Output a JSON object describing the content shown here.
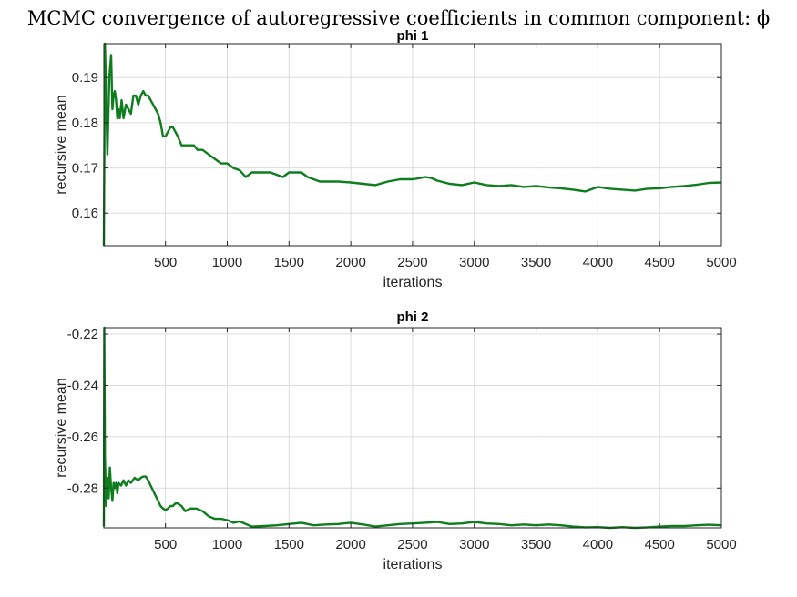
{
  "suptitle": "MCMC convergence of autoregressive coefficients in common component: ϕ",
  "chart_data": [
    {
      "type": "line",
      "title": "phi 1",
      "xlabel": "iterations",
      "ylabel": "recursive mean",
      "xlim": [
        1,
        5000
      ],
      "ylim": [
        0.1528,
        0.1975
      ],
      "xticks": [
        500,
        1000,
        1500,
        2000,
        2500,
        3000,
        3500,
        4000,
        4500,
        5000
      ],
      "yticks": [
        0.16,
        0.17,
        0.18,
        0.19
      ],
      "ytick_labels": [
        "0.16",
        "0.17",
        "0.18",
        "0.19"
      ],
      "grid": true,
      "color": "#0e7d1e",
      "series": [
        {
          "x": [
            1,
            10,
            20,
            30,
            45,
            60,
            70,
            80,
            90,
            100,
            110,
            120,
            130,
            145,
            160,
            180,
            200,
            220,
            240,
            260,
            280,
            300,
            320,
            340,
            360,
            380,
            400,
            420,
            440,
            460,
            480,
            500,
            520,
            540,
            560,
            580,
            600,
            630,
            660,
            700,
            730,
            760,
            800,
            850,
            900,
            950,
            1000,
            1050,
            1100,
            1150,
            1200,
            1250,
            1300,
            1350,
            1400,
            1450,
            1500,
            1550,
            1600,
            1650,
            1700,
            1750,
            1800,
            1900,
            2000,
            2100,
            2200,
            2300,
            2400,
            2500,
            2550,
            2600,
            2650,
            2700,
            2800,
            2900,
            3000,
            3100,
            3200,
            3300,
            3400,
            3500,
            3600,
            3700,
            3800,
            3900,
            4000,
            4100,
            4200,
            4300,
            4400,
            4500,
            4600,
            4700,
            4800,
            4900,
            5000
          ],
          "values": [
            0.1528,
            0.1975,
            0.185,
            0.173,
            0.19,
            0.195,
            0.183,
            0.186,
            0.187,
            0.185,
            0.181,
            0.183,
            0.181,
            0.185,
            0.181,
            0.184,
            0.183,
            0.182,
            0.186,
            0.186,
            0.184,
            0.186,
            0.187,
            0.186,
            0.186,
            0.185,
            0.184,
            0.183,
            0.182,
            0.18,
            0.177,
            0.177,
            0.178,
            0.179,
            0.179,
            0.178,
            0.177,
            0.175,
            0.175,
            0.175,
            0.175,
            0.174,
            0.174,
            0.173,
            0.172,
            0.171,
            0.171,
            0.17,
            0.1695,
            0.168,
            0.169,
            0.169,
            0.169,
            0.169,
            0.1685,
            0.168,
            0.169,
            0.169,
            0.169,
            0.168,
            0.1675,
            0.167,
            0.167,
            0.167,
            0.1668,
            0.1665,
            0.1662,
            0.167,
            0.1675,
            0.1675,
            0.1677,
            0.168,
            0.1678,
            0.1672,
            0.1665,
            0.1662,
            0.1668,
            0.1662,
            0.166,
            0.1662,
            0.1658,
            0.166,
            0.1657,
            0.1655,
            0.1652,
            0.1648,
            0.1658,
            0.1654,
            0.1652,
            0.165,
            0.1654,
            0.1655,
            0.1658,
            0.166,
            0.1663,
            0.1667,
            0.1668
          ]
        }
      ]
    },
    {
      "type": "line",
      "title": "phi 2",
      "xlabel": "iterations",
      "ylabel": "recursive mean",
      "xlim": [
        1,
        5000
      ],
      "ylim": [
        -0.2955,
        -0.2175
      ],
      "xticks": [
        500,
        1000,
        1500,
        2000,
        2500,
        3000,
        3500,
        4000,
        4500,
        5000
      ],
      "yticks": [
        -0.28,
        -0.26,
        -0.24,
        -0.22
      ],
      "ytick_labels": [
        "-0.28",
        "-0.26",
        "-0.24",
        "-0.22"
      ],
      "grid": true,
      "color": "#0e7d1e",
      "series": [
        {
          "x": [
            1,
            5,
            10,
            20,
            30,
            40,
            50,
            60,
            70,
            80,
            90,
            100,
            110,
            120,
            140,
            160,
            180,
            200,
            220,
            250,
            280,
            300,
            320,
            340,
            360,
            380,
            400,
            420,
            440,
            460,
            480,
            500,
            520,
            540,
            560,
            580,
            600,
            630,
            660,
            700,
            750,
            800,
            850,
            900,
            950,
            1000,
            1050,
            1100,
            1150,
            1200,
            1300,
            1400,
            1500,
            1600,
            1700,
            1800,
            1900,
            2000,
            2100,
            2200,
            2300,
            2400,
            2500,
            2600,
            2700,
            2800,
            2900,
            3000,
            3100,
            3200,
            3300,
            3400,
            3500,
            3600,
            3700,
            3800,
            3900,
            4000,
            4100,
            4200,
            4300,
            4400,
            4500,
            4600,
            4700,
            4800,
            4900,
            5000
          ],
          "values": [
            -0.295,
            -0.2175,
            -0.268,
            -0.287,
            -0.276,
            -0.284,
            -0.272,
            -0.28,
            -0.285,
            -0.278,
            -0.28,
            -0.278,
            -0.282,
            -0.278,
            -0.279,
            -0.277,
            -0.279,
            -0.277,
            -0.278,
            -0.276,
            -0.277,
            -0.276,
            -0.2755,
            -0.2755,
            -0.277,
            -0.279,
            -0.281,
            -0.283,
            -0.285,
            -0.287,
            -0.288,
            -0.2885,
            -0.288,
            -0.287,
            -0.287,
            -0.286,
            -0.286,
            -0.287,
            -0.289,
            -0.288,
            -0.288,
            -0.289,
            -0.291,
            -0.292,
            -0.292,
            -0.2925,
            -0.2935,
            -0.293,
            -0.294,
            -0.295,
            -0.2948,
            -0.2945,
            -0.294,
            -0.2935,
            -0.2945,
            -0.2942,
            -0.294,
            -0.2935,
            -0.2942,
            -0.295,
            -0.2945,
            -0.294,
            -0.2938,
            -0.2935,
            -0.2932,
            -0.294,
            -0.2938,
            -0.2932,
            -0.2938,
            -0.294,
            -0.2945,
            -0.2942,
            -0.2945,
            -0.2942,
            -0.2945,
            -0.295,
            -0.2953,
            -0.2952,
            -0.2955,
            -0.2952,
            -0.2955,
            -0.2953,
            -0.295,
            -0.2948,
            -0.2948,
            -0.2945,
            -0.2943,
            -0.2945
          ]
        }
      ]
    }
  ]
}
